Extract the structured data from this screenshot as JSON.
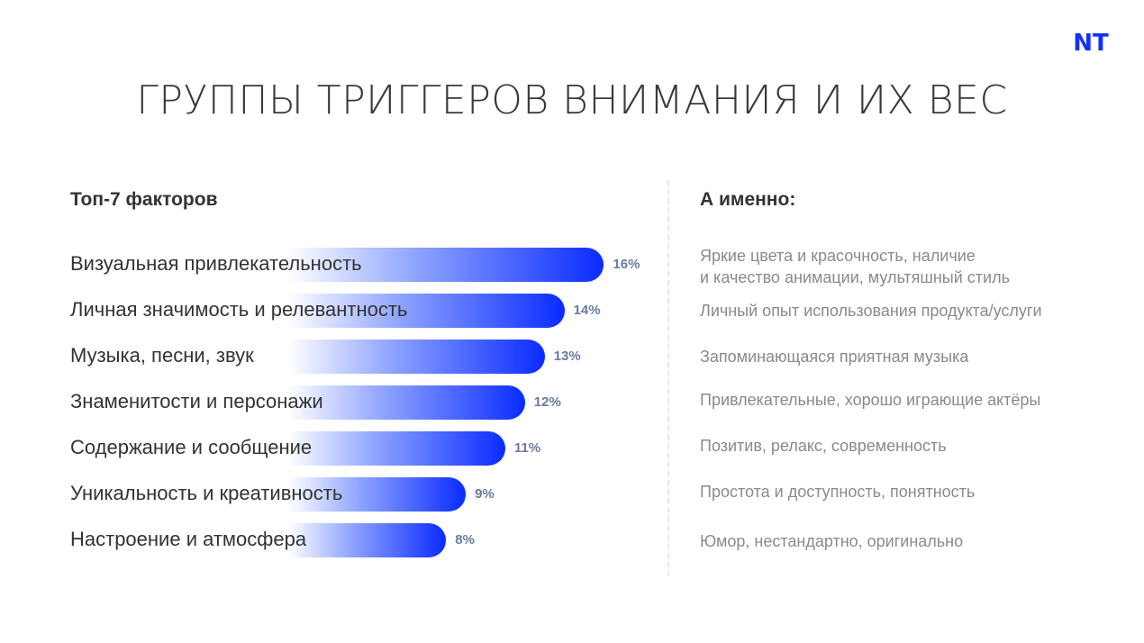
{
  "logo": {
    "text": "NT",
    "color": "#1230ff"
  },
  "title": "ГРУППЫ ТРИГГЕРОВ ВНИМАНИЯ И ИХ ВЕС",
  "left_heading": "Топ-7 факторов",
  "right_heading": "А именно:",
  "colors": {
    "bar_start": "#ffffff",
    "bar_end": "#0a2bff",
    "percent": "#6a7aa0"
  },
  "chart_data": {
    "type": "bar",
    "orientation": "horizontal",
    "categories": [
      "Визуальная привлекательность",
      "Личная значимость и релевантность",
      "Музыка, песни, звук",
      "Знаменитости и персонажи",
      "Содержание и сообщение",
      "Уникальность и креативность",
      "Настроение и атмосфера"
    ],
    "values": [
      16,
      14,
      13,
      12,
      11,
      9,
      8
    ],
    "value_labels": [
      "16%",
      "14%",
      "13%",
      "12%",
      "11%",
      "9%",
      "8%"
    ],
    "unit": "%"
  },
  "notes": [
    [
      "Яркие цвета и красочность, наличие",
      "и качество анимации, мультяшный стиль"
    ],
    [
      "Личный опыт использования продукта/услуги"
    ],
    [
      "Запоминающаяся приятная музыка"
    ],
    [
      "Привлекательные, хорошо играющие актёры"
    ],
    [
      "Позитив, релакс, современность"
    ],
    [
      "Простота и доступность, понятность"
    ],
    [
      "Юмор, нестандартно, оригинально"
    ]
  ]
}
